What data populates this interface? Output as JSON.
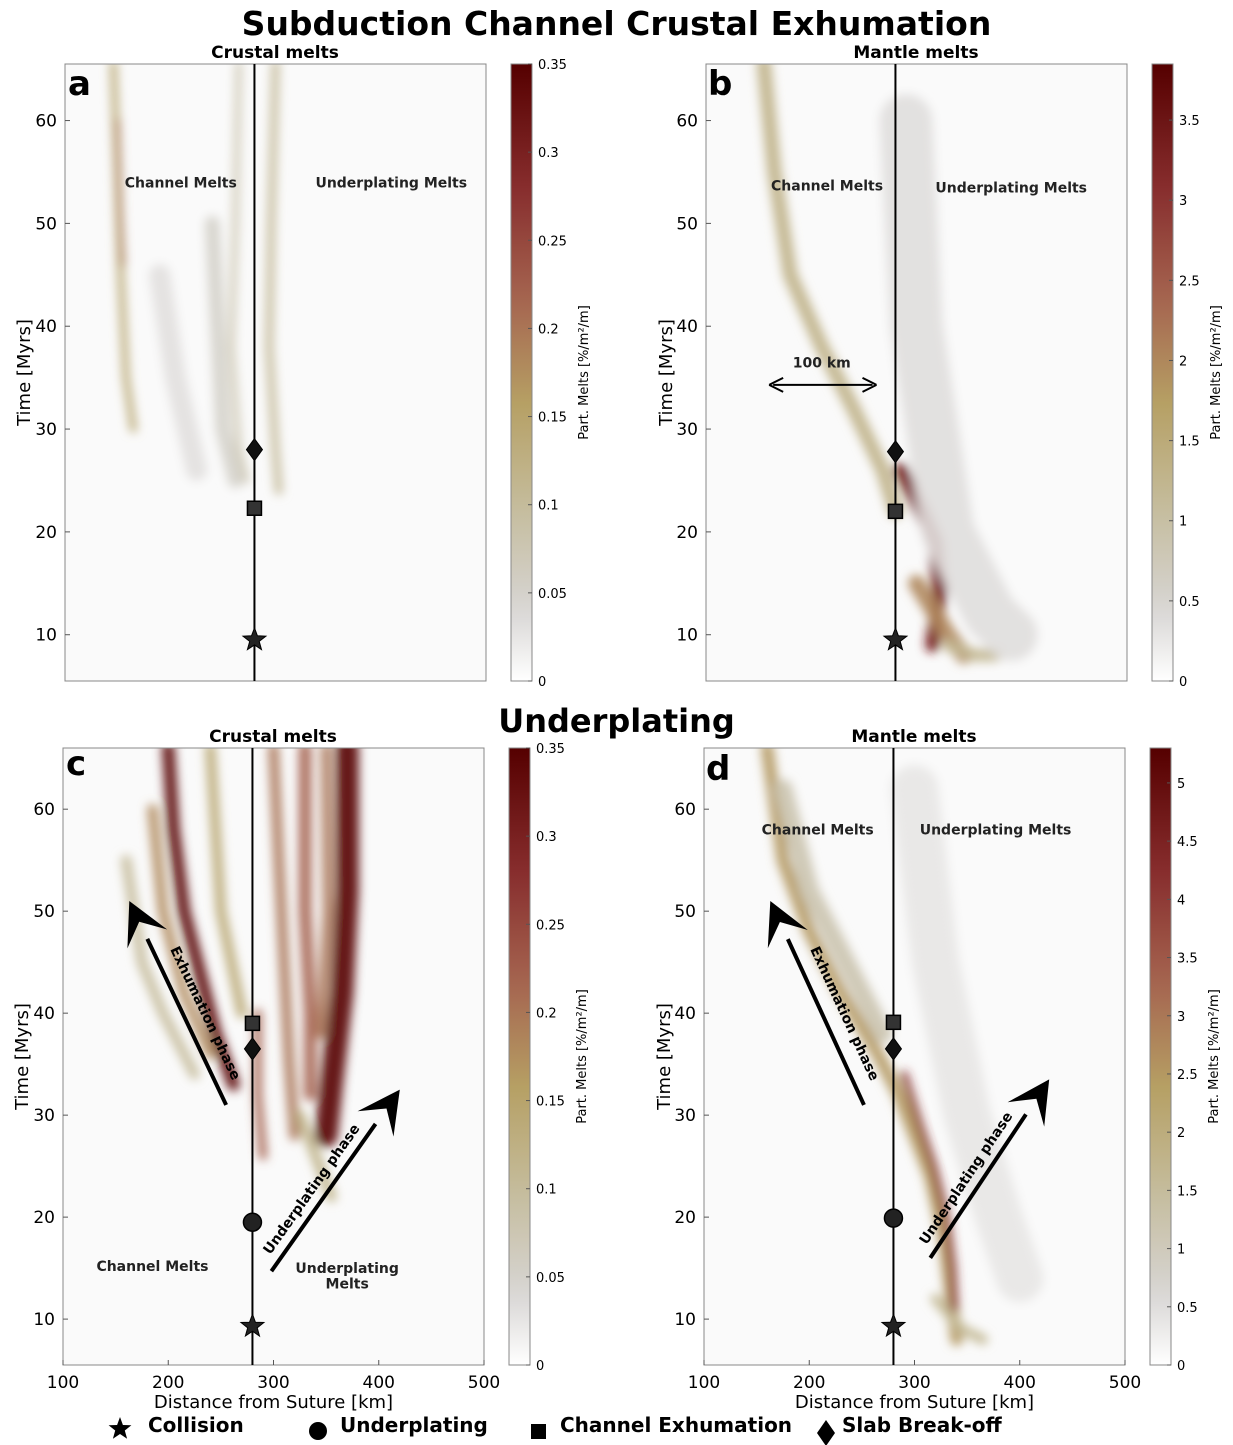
{
  "figure": {
    "title": "Subduction Channel Crustal Exhumation",
    "section_title": "Underplating",
    "legend": [
      {
        "symbol": "star",
        "label": "Collision"
      },
      {
        "symbol": "circle",
        "label": "Underplating"
      },
      {
        "symbol": "square",
        "label": "Channel Exhumation"
      },
      {
        "symbol": "diamond",
        "label": "Slab Break-off"
      }
    ]
  },
  "chart_data": [
    {
      "panel": "a",
      "type": "heatmap",
      "title": "Crustal melts",
      "ylabel": "Time [Myrs]",
      "xlim": [
        100,
        500
      ],
      "ylim": [
        5.5,
        65.5
      ],
      "yticks": [
        10,
        20,
        30,
        40,
        50,
        60
      ],
      "colorbar": {
        "label": "Part. Melts [%/m²/m]",
        "range": [
          0,
          0.35
        ],
        "ticks": [
          "0",
          "0.05",
          "0.1",
          "0.15",
          "0.2",
          "0.25",
          "0.3",
          "0.35"
        ],
        "tick_values": [
          0,
          0.05,
          0.1,
          0.15,
          0.2,
          0.25,
          0.3,
          0.35
        ]
      },
      "suture_line_x": 280,
      "markers": [
        {
          "symbol": "star",
          "x": 280,
          "y": 9.5
        },
        {
          "symbol": "square",
          "x": 280,
          "y": 22.3
        },
        {
          "symbol": "diamond",
          "x": 280,
          "y": 28
        }
      ],
      "annotations": [
        {
          "text": "Channel Melts",
          "x": 210,
          "y": 53.5
        },
        {
          "text": "Underplating Melts",
          "x": 410,
          "y": 53.5
        }
      ],
      "bands": [
        {
          "pts": [
            [
              146,
              65.5
            ],
            [
              150,
              55
            ],
            [
              153,
              45
            ],
            [
              158,
              35
            ],
            [
              165,
              30
            ]
          ],
          "w": 7,
          "v": 0.14
        },
        {
          "pts": [
            [
              150,
              60
            ],
            [
              152,
              52
            ],
            [
              155,
              46
            ]
          ],
          "w": 4,
          "v": 0.2
        },
        {
          "pts": [
            [
              265,
              65.5
            ],
            [
              262,
              50
            ],
            [
              258,
              38
            ],
            [
              265,
              28
            ],
            [
              272,
              25
            ]
          ],
          "w": 6,
          "v": 0.08
        },
        {
          "pts": [
            [
              300,
              65.5
            ],
            [
              296,
              50
            ],
            [
              294,
              38
            ],
            [
              300,
              28
            ],
            [
              303,
              24
            ]
          ],
          "w": 8,
          "v": 0.1
        },
        {
          "pts": [
            [
              240,
              50
            ],
            [
              245,
              40
            ],
            [
              250,
              30
            ],
            [
              262,
              25
            ]
          ],
          "w": 14,
          "v": 0.05
        },
        {
          "pts": [
            [
              190,
              45
            ],
            [
              205,
              35
            ],
            [
              225,
              26
            ]
          ],
          "w": 20,
          "v": 0.03
        }
      ]
    },
    {
      "panel": "b",
      "type": "heatmap",
      "title": "Mantle melts",
      "ylabel": "Time [Myrs]",
      "xlim": [
        100,
        500
      ],
      "ylim": [
        5.5,
        65.5
      ],
      "yticks": [
        10,
        20,
        30,
        40,
        50,
        60
      ],
      "colorbar": {
        "label": "Part. Melts [%/m²/m]",
        "range": [
          0,
          3.85
        ],
        "ticks": [
          "0",
          "0.5",
          "1",
          "1.5",
          "2",
          "2.5",
          "3",
          "3.5"
        ],
        "tick_values": [
          0,
          0.5,
          1,
          1.5,
          2,
          2.5,
          3,
          3.5
        ]
      },
      "suture_line_x": 280,
      "markers": [
        {
          "symbol": "star",
          "x": 280,
          "y": 9.5
        },
        {
          "symbol": "square",
          "x": 280,
          "y": 22
        },
        {
          "symbol": "diamond",
          "x": 280,
          "y": 27.8
        }
      ],
      "annotations": [
        {
          "text": "Channel Melts",
          "x": 215,
          "y": 53.2
        },
        {
          "text": "Underplating Melts",
          "x": 390,
          "y": 53
        },
        {
          "text": "100 km",
          "x": 210,
          "y": 36
        }
      ],
      "scalebar": {
        "x0": 160,
        "x1": 262,
        "y": 34.3
      },
      "bands": [
        {
          "pts": [
            [
              155,
              65.5
            ],
            [
              165,
              55
            ],
            [
              180,
              45
            ],
            [
              210,
              38
            ],
            [
              240,
              32
            ],
            [
              268,
              26
            ],
            [
              280,
              22
            ]
          ],
          "w": 14,
          "v": 1.3
        },
        {
          "pts": [
            [
              285,
              26
            ],
            [
              305,
              22
            ],
            [
              318,
              19
            ],
            [
              322,
              14
            ],
            [
              315,
              9
            ]
          ],
          "w": 14,
          "v": 3.4
        },
        {
          "pts": [
            [
              300,
              15
            ],
            [
              330,
              10
            ],
            [
              345,
              8
            ]
          ],
          "w": 16,
          "v": 2.0
        },
        {
          "pts": [
            [
              330,
              9
            ],
            [
              355,
              8
            ],
            [
              375,
              8
            ]
          ],
          "w": 12,
          "v": 1.2
        },
        {
          "pts": [
            [
              290,
              60
            ],
            [
              300,
              40
            ],
            [
              330,
              20
            ],
            [
              370,
              12
            ],
            [
              390,
              10
            ]
          ],
          "w": 50,
          "v": 0.35
        }
      ]
    },
    {
      "panel": "c",
      "type": "heatmap",
      "title": "Crustal melts",
      "xlabel": "Distance from Suture [km]",
      "ylabel": "Time [Myrs]",
      "xlim": [
        100,
        500
      ],
      "ylim": [
        5.5,
        66
      ],
      "xticks": [
        100,
        200,
        300,
        400,
        500
      ],
      "yticks": [
        10,
        20,
        30,
        40,
        50,
        60
      ],
      "colorbar": {
        "label": "Part. Melts [%/m²/m]",
        "range": [
          0,
          0.35
        ],
        "ticks": [
          "0",
          "0.05",
          "0.1",
          "0.15",
          "0.2",
          "0.25",
          "0.3",
          "0.35"
        ],
        "tick_values": [
          0,
          0.05,
          0.1,
          0.15,
          0.2,
          0.25,
          0.3,
          0.35
        ]
      },
      "suture_line_x": 280,
      "markers": [
        {
          "symbol": "star",
          "x": 280,
          "y": 9.3
        },
        {
          "symbol": "circle",
          "x": 280,
          "y": 19.5
        },
        {
          "symbol": "diamond",
          "x": 280,
          "y": 36.5
        },
        {
          "symbol": "square",
          "x": 280,
          "y": 39
        }
      ],
      "annotations": [
        {
          "text": "Channel Melts",
          "x": 185,
          "y": 14.7
        },
        {
          "text": "Underplating",
          "x": 370,
          "y": 14.5
        },
        {
          "text": "Melts",
          "x": 370,
          "y": 13
        }
      ],
      "arrows": [
        {
          "text": "Exhumation phase",
          "from": [
            255,
            31
          ],
          "to": [
            163,
            51
          ]
        },
        {
          "text": "Underplating phase",
          "from": [
            298,
            14.7
          ],
          "to": [
            420,
            32.5
          ]
        }
      ],
      "bands": [
        {
          "pts": [
            [
              200,
              66
            ],
            [
              205,
              58
            ],
            [
              215,
              50
            ],
            [
              230,
              44
            ],
            [
              245,
              38
            ],
            [
              262,
              33
            ]
          ],
          "w": 12,
          "v": 0.35
        },
        {
          "pts": [
            [
              185,
              60
            ],
            [
              195,
              50
            ],
            [
              215,
              42
            ],
            [
              240,
              36
            ]
          ],
          "w": 10,
          "v": 0.18
        },
        {
          "pts": [
            [
              160,
              55
            ],
            [
              175,
              45
            ],
            [
              195,
              40
            ],
            [
              225,
              34
            ]
          ],
          "w": 10,
          "v": 0.1
        },
        {
          "pts": [
            [
              370,
              66
            ],
            [
              370,
              52
            ],
            [
              365,
              42
            ],
            [
              355,
              33
            ],
            [
              350,
              28
            ]
          ],
          "w": 22,
          "v": 0.35
        },
        {
          "pts": [
            [
              330,
              66
            ],
            [
              330,
              50
            ],
            [
              335,
              40
            ],
            [
              335,
              32
            ]
          ],
          "w": 12,
          "v": 0.22
        },
        {
          "pts": [
            [
              300,
              66
            ],
            [
              305,
              55
            ],
            [
              310,
              45
            ],
            [
              315,
              35
            ],
            [
              320,
              28
            ]
          ],
          "w": 10,
          "v": 0.2
        },
        {
          "pts": [
            [
              285,
              40
            ],
            [
              285,
              32
            ],
            [
              290,
              26
            ]
          ],
          "w": 8,
          "v": 0.22
        },
        {
          "pts": [
            [
              325,
              30
            ],
            [
              340,
              26
            ],
            [
              355,
              22
            ]
          ],
          "w": 10,
          "v": 0.12
        },
        {
          "pts": [
            [
              240,
              66
            ],
            [
              250,
              50
            ],
            [
              270,
              40
            ]
          ],
          "w": 10,
          "v": 0.14
        },
        {
          "pts": [
            [
              350,
              66
            ],
            [
              352,
              50
            ],
            [
              345,
              38
            ]
          ],
          "w": 10,
          "v": 0.2
        }
      ]
    },
    {
      "panel": "d",
      "type": "heatmap",
      "title": "Mantle melts",
      "xlabel": "Distance from Suture [km]",
      "ylabel": "Time [Myrs]",
      "xlim": [
        100,
        500
      ],
      "ylim": [
        5.5,
        66
      ],
      "xticks": [
        100,
        200,
        300,
        400,
        500
      ],
      "yticks": [
        10,
        20,
        30,
        40,
        50,
        60
      ],
      "colorbar": {
        "label": "Part. Melts [%/m²/m]",
        "range": [
          0,
          5.3
        ],
        "ticks": [
          "0",
          "0.5",
          "1",
          "1.5",
          "2",
          "2.5",
          "3",
          "3.5",
          "4",
          "4.5",
          "5"
        ],
        "tick_values": [
          0,
          0.5,
          1,
          1.5,
          2,
          2.5,
          3,
          3.5,
          4,
          4.5,
          5
        ]
      },
      "suture_line_x": 280,
      "markers": [
        {
          "symbol": "star",
          "x": 280,
          "y": 9.3
        },
        {
          "symbol": "circle",
          "x": 280,
          "y": 19.9
        },
        {
          "symbol": "diamond",
          "x": 280,
          "y": 36.5
        },
        {
          "symbol": "square",
          "x": 280,
          "y": 39.1
        }
      ],
      "annotations": [
        {
          "text": "Channel Melts",
          "x": 208,
          "y": 57.5
        },
        {
          "text": "Underplating Melts",
          "x": 377,
          "y": 57.5
        }
      ],
      "arrows": [
        {
          "text": "Exhumation phase",
          "from": [
            252,
            31
          ],
          "to": [
            163,
            51
          ]
        },
        {
          "text": "Underplating phase",
          "from": [
            315,
            16
          ],
          "to": [
            428,
            33.5
          ]
        }
      ],
      "bands": [
        {
          "pts": [
            [
              160,
              66
            ],
            [
              175,
              55
            ],
            [
              200,
              48
            ],
            [
              230,
              42
            ],
            [
              265,
              36
            ],
            [
              285,
              32
            ],
            [
              300,
              28
            ],
            [
              315,
              24
            ],
            [
              328,
              18
            ],
            [
              335,
              12
            ],
            [
              340,
              8
            ]
          ],
          "w": 12,
          "v": 2.5
        },
        {
          "pts": [
            [
              290,
              34
            ],
            [
              305,
              29
            ],
            [
              318,
              25
            ],
            [
              330,
              20
            ],
            [
              336,
              15
            ],
            [
              338,
              11
            ]
          ],
          "w": 7,
          "v": 4.3
        },
        {
          "pts": [
            [
              175,
              62
            ],
            [
              200,
              52
            ],
            [
              240,
              44
            ],
            [
              270,
              38
            ]
          ],
          "w": 18,
          "v": 1.2
        },
        {
          "pts": [
            [
              300,
              62
            ],
            [
              320,
              45
            ],
            [
              350,
              30
            ],
            [
              380,
              20
            ],
            [
              400,
              14
            ]
          ],
          "w": 45,
          "v": 0.35
        },
        {
          "pts": [
            [
              320,
              12
            ],
            [
              345,
              9
            ],
            [
              365,
              8
            ]
          ],
          "w": 10,
          "v": 1.6
        }
      ]
    }
  ]
}
